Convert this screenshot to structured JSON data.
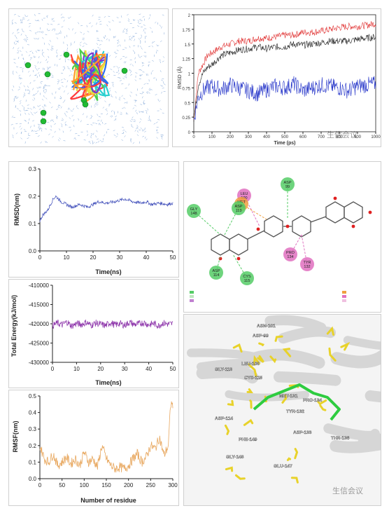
{
  "colors": {
    "water": "#7fa6d8",
    "ion": "#22bb33",
    "rmsd_red": "#e03030",
    "rmsd_black": "#222222",
    "rmsd_blue": "#2030c8",
    "rmsd_ns": "#3a49b8",
    "energy": "#8a2fa8",
    "rmsf": "#e8a860",
    "ligand_carbon": "#2ecc40",
    "residue_carbon": "#e8d22a",
    "interaction_green": "#55cc66",
    "interaction_pink": "#e070c0",
    "interaction_orange": "#f0a040"
  },
  "watermark": "生信会议",
  "chart_data": [
    {
      "id": "rmsd-ps",
      "type": "line",
      "xlabel": "Time (ps)",
      "ylabel": "RMSD (Å)",
      "xlim": [
        0,
        1000
      ],
      "ylim": [
        0,
        2
      ],
      "xticks": [
        "0",
        "100",
        "200",
        "300",
        "400",
        "500",
        "600",
        "700",
        "800",
        "900",
        "1000"
      ],
      "yticks": [
        "0",
        "0.25",
        "0.5",
        "0.75",
        "1",
        "1.25",
        "1.5",
        "1.75",
        "2"
      ],
      "x": [
        0,
        25,
        50,
        75,
        100,
        150,
        200,
        250,
        300,
        350,
        400,
        450,
        500,
        550,
        600,
        650,
        700,
        750,
        800,
        850,
        900,
        950,
        1000
      ],
      "series": [
        {
          "values": [
            0.2,
            1.0,
            1.15,
            1.3,
            1.35,
            1.45,
            1.5,
            1.55,
            1.55,
            1.6,
            1.6,
            1.62,
            1.65,
            1.65,
            1.7,
            1.7,
            1.72,
            1.75,
            1.78,
            1.8,
            1.8,
            1.82,
            1.85
          ]
        },
        {
          "values": [
            0.2,
            0.8,
            1.0,
            1.1,
            1.15,
            1.3,
            1.35,
            1.4,
            1.42,
            1.45,
            1.42,
            1.45,
            1.45,
            1.5,
            1.48,
            1.5,
            1.52,
            1.55,
            1.55,
            1.55,
            1.58,
            1.6,
            1.62
          ]
        },
        {
          "values": [
            0.2,
            0.6,
            0.7,
            0.75,
            0.78,
            0.72,
            0.8,
            0.75,
            0.7,
            0.65,
            0.72,
            0.78,
            0.75,
            0.82,
            0.7,
            0.75,
            0.8,
            0.78,
            0.75,
            0.7,
            0.78,
            0.8,
            0.82
          ]
        }
      ]
    },
    {
      "id": "rmsd-ns",
      "type": "line",
      "xlabel": "Time(ns)",
      "ylabel": "RMSD(nm)",
      "xlim": [
        0,
        50
      ],
      "ylim": [
        0,
        0.3
      ],
      "xticks": [
        "0",
        "10",
        "20",
        "30",
        "40",
        "50"
      ],
      "yticks": [
        "0.0",
        "0.1",
        "0.2",
        "0.3"
      ],
      "x": [
        0,
        1,
        2,
        3,
        4,
        5,
        6,
        8,
        10,
        12,
        15,
        18,
        20,
        22,
        25,
        28,
        30,
        32,
        35,
        38,
        40,
        42,
        45,
        48,
        50
      ],
      "values": [
        0.11,
        0.13,
        0.14,
        0.15,
        0.17,
        0.19,
        0.2,
        0.18,
        0.17,
        0.16,
        0.17,
        0.16,
        0.17,
        0.18,
        0.175,
        0.18,
        0.185,
        0.19,
        0.18,
        0.175,
        0.18,
        0.17,
        0.175,
        0.17,
        0.175
      ]
    },
    {
      "id": "energy",
      "type": "line",
      "xlabel": "Time(ns)",
      "ylabel": "Total Energy(kJ/mol)",
      "xlim": [
        0,
        50
      ],
      "ylim": [
        -430000,
        -410000
      ],
      "xticks": [
        "0",
        "10",
        "20",
        "30",
        "40",
        "50"
      ],
      "yticks": [
        "-410000",
        "-415000",
        "-420000",
        "-425000",
        "-430000"
      ],
      "x": [
        0,
        2,
        4,
        6,
        8,
        10,
        12,
        14,
        16,
        18,
        20,
        22,
        24,
        26,
        28,
        30,
        32,
        34,
        36,
        38,
        40,
        42,
        44,
        46,
        48,
        50
      ],
      "values": [
        -420500,
        -419800,
        -420300,
        -419500,
        -420600,
        -419900,
        -420200,
        -419600,
        -420400,
        -419800,
        -420100,
        -420500,
        -419700,
        -420300,
        -419900,
        -420400,
        -419600,
        -420200,
        -420000,
        -419700,
        -420300,
        -419900,
        -420500,
        -419800,
        -420100,
        -420000
      ]
    },
    {
      "id": "rmsf",
      "type": "line",
      "xlabel": "Number of residue",
      "ylabel": "RMSF(nm)",
      "xlim": [
        0,
        300
      ],
      "ylim": [
        0,
        0.5
      ],
      "xticks": [
        "0",
        "50",
        "100",
        "150",
        "200",
        "250",
        "300"
      ],
      "yticks": [
        "0.0",
        "0.1",
        "0.2",
        "0.3",
        "0.4",
        "0.5"
      ],
      "x": [
        0,
        10,
        20,
        30,
        40,
        50,
        60,
        70,
        80,
        90,
        100,
        110,
        120,
        130,
        140,
        150,
        160,
        170,
        180,
        190,
        200,
        210,
        220,
        230,
        240,
        250,
        260,
        270,
        280,
        290,
        295
      ],
      "values": [
        0.2,
        0.12,
        0.1,
        0.15,
        0.08,
        0.1,
        0.13,
        0.09,
        0.12,
        0.08,
        0.16,
        0.1,
        0.12,
        0.07,
        0.2,
        0.12,
        0.08,
        0.06,
        0.07,
        0.06,
        0.08,
        0.12,
        0.15,
        0.1,
        0.13,
        0.2,
        0.18,
        0.25,
        0.14,
        0.2,
        0.45
      ]
    }
  ],
  "interaction_2d": {
    "residues": [
      {
        "name": "GLY\n148"
      },
      {
        "name": "LEU\n100"
      },
      {
        "name": "MET\n131"
      },
      {
        "name": "ASP\n99"
      },
      {
        "name": "ASP\n113"
      },
      {
        "name": "ASP\n114"
      },
      {
        "name": "CYS\n115"
      },
      {
        "name": "PRO\n134"
      },
      {
        "name": "TYR\n132"
      }
    ]
  },
  "structure_3d": {
    "residue_labels": [
      "ASN-101",
      "ASP-99",
      "LEU-100",
      "GLY-113",
      "CYS-115",
      "MET-131",
      "PRO-134",
      "ASP-114",
      "TYR-132",
      "PHE-149",
      "ASP-133",
      "THR-136",
      "GLY-148",
      "GLU-147"
    ]
  }
}
